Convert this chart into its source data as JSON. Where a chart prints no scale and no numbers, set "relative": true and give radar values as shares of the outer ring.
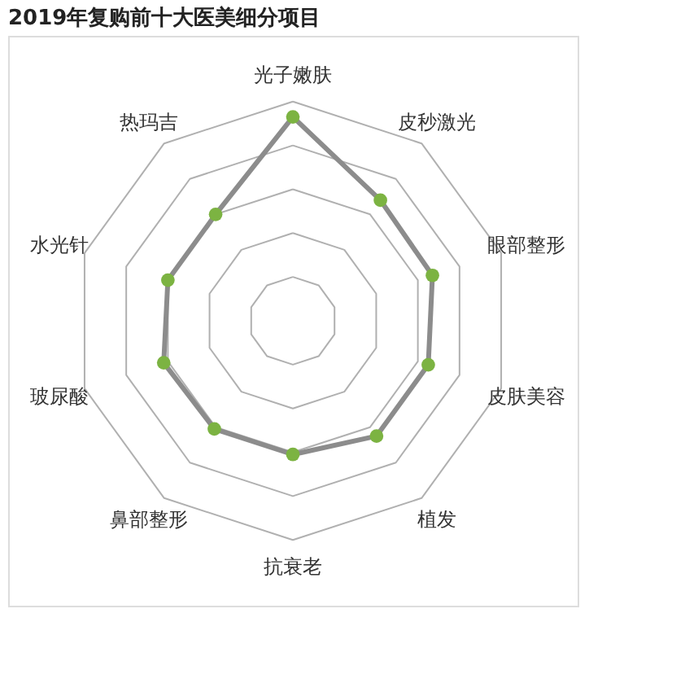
{
  "chart_data": {
    "type": "radar",
    "title": "2019年复购前十大医美细分项目",
    "categories": [
      "光子嫩肤",
      "皮秒激光",
      "眼部整形",
      "皮肤美容",
      "植发",
      "抗衰老",
      "鼻部整形",
      "玻尿酸",
      "水光针",
      "热玛吉"
    ],
    "series": [
      {
        "color": "#8c8c8c",
        "values": [
          0.93,
          0.68,
          0.67,
          0.65,
          0.65,
          0.61,
          0.61,
          0.62,
          0.6,
          0.6
        ]
      }
    ],
    "relative": true,
    "grid": true,
    "marker": "circle"
  }
}
